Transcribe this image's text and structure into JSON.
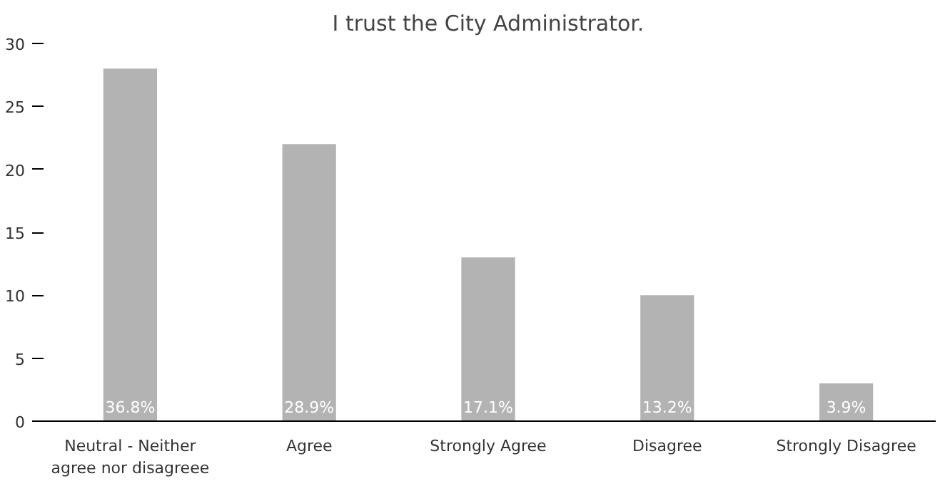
{
  "chart_data": {
    "type": "bar",
    "title": "I trust the City Administrator.",
    "categories": [
      "Neutral - Neither\nagree nor disagreee",
      "Agree",
      "Strongly Agree",
      "Disagree",
      "Strongly Disagree"
    ],
    "values": [
      28,
      22,
      13,
      10,
      3
    ],
    "annotations": [
      {
        "text": "36.8%",
        "x": "Neutral - Neither\nagree nor disagreee",
        "y": 0
      },
      {
        "text": "28.9%",
        "x": "Agree",
        "y": 0
      },
      {
        "text": "17.1%",
        "x": "Strongly Agree",
        "y": 0
      },
      {
        "text": "13.2%",
        "x": "Disagree",
        "y": 0
      },
      {
        "text": "3.9%",
        "x": "Strongly Disagree",
        "y": 0
      }
    ],
    "color": "#b3b3b3",
    "ylim": [
      0,
      30
    ],
    "yticks": [
      0,
      5,
      10,
      15,
      20,
      25,
      30
    ],
    "grid": false
  }
}
